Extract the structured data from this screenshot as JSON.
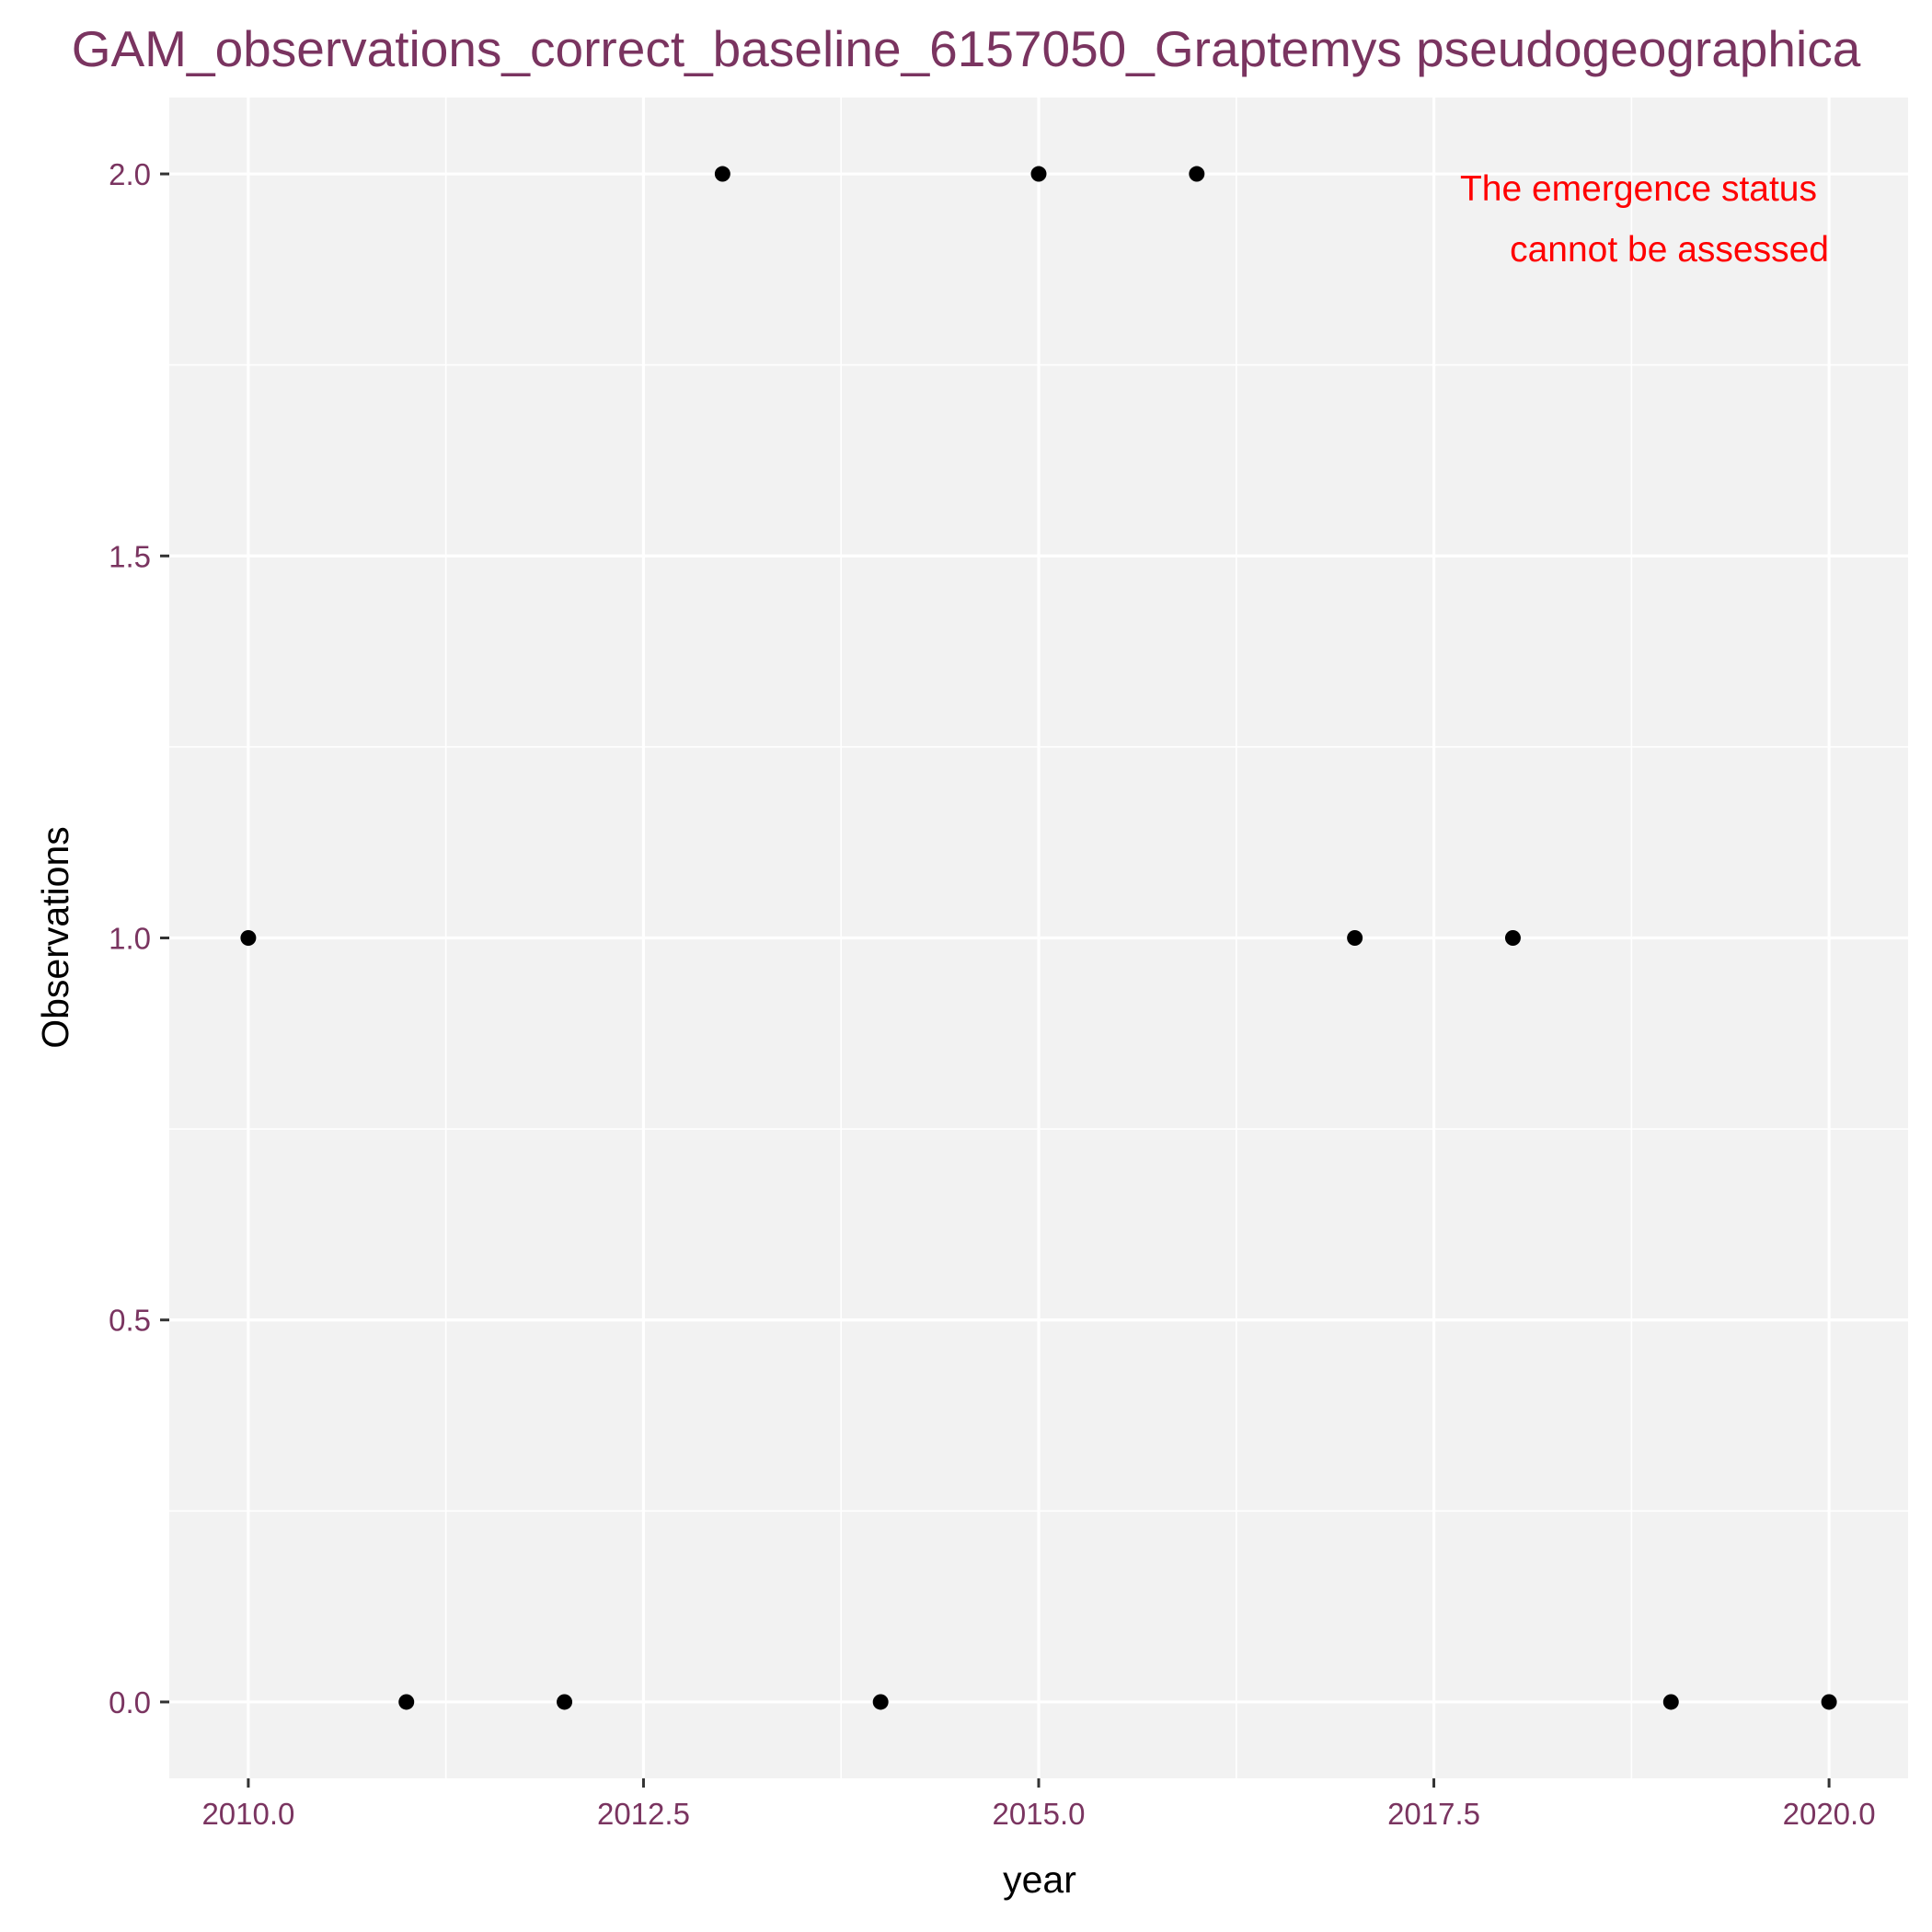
{
  "chart_data": {
    "type": "scatter",
    "title": "GAM_observations_correct_baseline_6157050_Graptemys pseudogeographica",
    "xlabel": "year",
    "ylabel": "Observations",
    "xlim": [
      2009.5,
      2020.5
    ],
    "ylim": [
      -0.1,
      2.1
    ],
    "x_ticks": [
      2010.0,
      2012.5,
      2015.0,
      2017.5,
      2020.0
    ],
    "x_tick_labels": [
      "2010.0",
      "2012.5",
      "2015.0",
      "2017.5",
      "2020.0"
    ],
    "y_ticks": [
      0.0,
      0.5,
      1.0,
      1.5,
      2.0
    ],
    "y_tick_labels": [
      "0.0",
      "0.5",
      "1.0",
      "1.5",
      "2.0"
    ],
    "grid": true,
    "series": [
      {
        "points": [
          {
            "x": 2010,
            "y": 1
          },
          {
            "x": 2011,
            "y": 0
          },
          {
            "x": 2012,
            "y": 0
          },
          {
            "x": 2013,
            "y": 2
          },
          {
            "x": 2014,
            "y": 0
          },
          {
            "x": 2015,
            "y": 2
          },
          {
            "x": 2016,
            "y": 2
          },
          {
            "x": 2017,
            "y": 1
          },
          {
            "x": 2018,
            "y": 1
          },
          {
            "x": 2019,
            "y": 0
          },
          {
            "x": 2020,
            "y": 0
          }
        ]
      }
    ],
    "annotation": {
      "lines": [
        "The emergence status",
        "cannot be assessed"
      ],
      "placement": "top-right"
    },
    "colors": {
      "panel_background": "#f2f2f2",
      "grid_line": "#ffffff",
      "point": "#000000",
      "tick_text": "#7a3460",
      "title_text": "#7a3460",
      "annotation_text": "#ff0000"
    }
  }
}
